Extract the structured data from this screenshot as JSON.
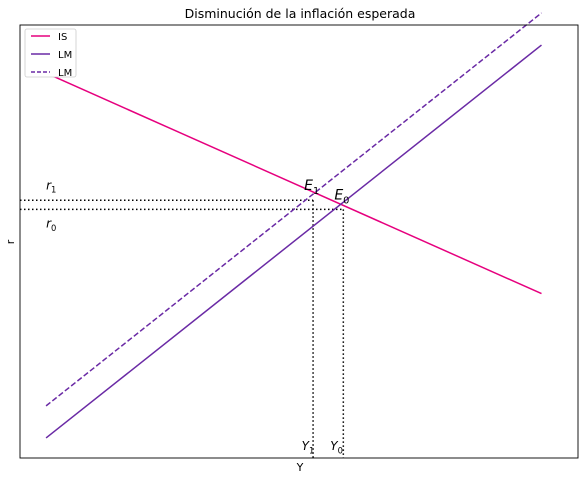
{
  "chart_data": {
    "type": "line",
    "title": "Disminución de la inflación esperada",
    "xlabel": "Y",
    "ylabel": "r",
    "xlim": [
      0,
      10.7
    ],
    "ylim": [
      0,
      10.8
    ],
    "grid": false,
    "ticks": "none",
    "legend": {
      "placement": "top-left",
      "entries": [
        "IS",
        "LM",
        "LM"
      ]
    },
    "series": [
      {
        "name": "IS",
        "color": "#e6007e",
        "dash": "solid",
        "x": [
          0.5,
          10.0
        ],
        "y": [
          9.6,
          4.1
        ]
      },
      {
        "name": "LM",
        "color": "#6a2aa5",
        "dash": "solid",
        "x": [
          0.5,
          10.0
        ],
        "y": [
          0.5,
          10.3
        ]
      },
      {
        "name": "LM",
        "color": "#6a2aa5",
        "dash": "dashed",
        "x": [
          0.5,
          10.0
        ],
        "y": [
          1.3,
          11.1
        ]
      }
    ],
    "equilibria": [
      {
        "label_base": "E",
        "label_sub": "0",
        "x": 6.2,
        "y": 6.2
      },
      {
        "label_base": "E",
        "label_sub": "1",
        "x": 5.62,
        "y": 6.43
      }
    ],
    "annotations": [
      {
        "base": "r",
        "sub": "1",
        "x": 0.5,
        "y": 6.7
      },
      {
        "base": "r",
        "sub": "0",
        "x": 0.5,
        "y": 5.75
      },
      {
        "base": "Y",
        "sub": "1",
        "x": 5.4,
        "y": 0.2
      },
      {
        "base": "Y",
        "sub": "0",
        "x": 5.95,
        "y": 0.2
      }
    ]
  }
}
